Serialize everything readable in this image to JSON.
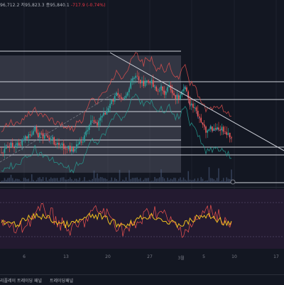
{
  "ohlc": {
    "text_a": "96,712.2",
    "text_b": "저95,823.3",
    "text_c": "종95,840.1",
    "change": "-717.9 (-0.74%)"
  },
  "date_labels": [
    "6",
    "13",
    "20",
    "27",
    "3월",
    "5",
    "10",
    "17"
  ],
  "bottom_bar": {
    "tab_replay": "리플레이 트레이딩 패널",
    "tab_trading": "트레이딩패널"
  },
  "colors": {
    "background": "#131722",
    "up": "#26a69a",
    "down": "#ef5350",
    "horizontal_line": "#d1d4dc",
    "band_fill": "#4a4e5c",
    "oscillator_panel": "#2a1e3a",
    "oscillator_line": "#f0c020"
  },
  "icons": [
    "bar-replay-marker-icon"
  ]
}
